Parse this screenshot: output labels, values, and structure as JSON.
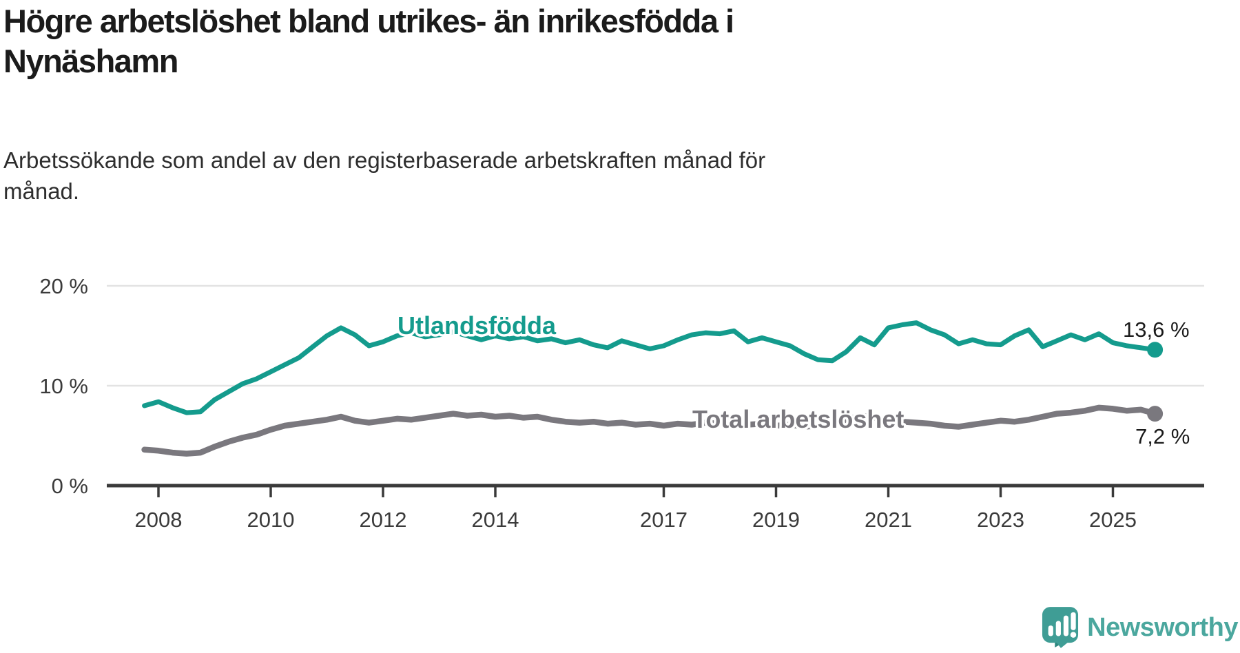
{
  "header": {
    "title": "Högre arbetslöshet bland utrikes- än inrikesfödda i\nNynäshamn",
    "subtitle": "Arbetssökande som andel av den registerbaserade arbetskraften månad för\nmånad."
  },
  "chart_data": {
    "type": "line",
    "unit": "%",
    "x_start": 2007.75,
    "x_step": 0.25,
    "xlim": [
      2007.1,
      2026.6
    ],
    "ylim": [
      0,
      21.7
    ],
    "grid": "horizontal",
    "x_ticks": [
      2008,
      2010,
      2012,
      2014,
      2017,
      2019,
      2021,
      2023,
      2025
    ],
    "y_ticks": [
      {
        "value": 0,
        "label": "0 %"
      },
      {
        "value": 10,
        "label": "10 %"
      },
      {
        "value": 20,
        "label": "20 %"
      }
    ],
    "series": [
      {
        "name": "Utlandsfödda",
        "color": "#149B8D",
        "end_label": "13,6 %",
        "end_value": 13.6,
        "values": [
          8.0,
          8.4,
          7.8,
          7.3,
          7.4,
          8.6,
          9.4,
          10.2,
          10.7,
          11.4,
          12.1,
          12.8,
          13.9,
          15.0,
          15.8,
          15.1,
          14.0,
          14.4,
          15.0,
          15.3,
          14.9,
          15.1,
          15.4,
          15.0,
          14.6,
          15.0,
          14.7,
          14.9,
          14.5,
          14.7,
          14.3,
          14.6,
          14.1,
          13.8,
          14.5,
          14.1,
          13.7,
          14.0,
          14.6,
          15.1,
          15.3,
          15.2,
          15.5,
          14.4,
          14.8,
          14.4,
          14.0,
          13.2,
          12.6,
          12.5,
          13.4,
          14.8,
          14.1,
          15.8,
          16.1,
          16.3,
          15.6,
          15.1,
          14.2,
          14.6,
          14.2,
          14.1,
          15.0,
          15.6,
          13.9,
          14.5,
          15.1,
          14.6,
          15.2,
          14.3,
          14.0,
          13.8,
          13.6
        ]
      },
      {
        "name": "Total arbetslöshet",
        "color": "#7A787E",
        "end_label": "7,2 %",
        "end_value": 7.2,
        "values": [
          3.6,
          3.5,
          3.3,
          3.2,
          3.3,
          3.9,
          4.4,
          4.8,
          5.1,
          5.6,
          6.0,
          6.2,
          6.4,
          6.6,
          6.9,
          6.5,
          6.3,
          6.5,
          6.7,
          6.6,
          6.8,
          7.0,
          7.2,
          7.0,
          7.1,
          6.9,
          7.0,
          6.8,
          6.9,
          6.6,
          6.4,
          6.3,
          6.4,
          6.2,
          6.3,
          6.1,
          6.2,
          6.0,
          6.2,
          6.1,
          6.3,
          6.2,
          6.4,
          6.1,
          6.2,
          6.0,
          6.1,
          5.9,
          6.0,
          6.1,
          6.6,
          7.0,
          6.8,
          6.6,
          6.4,
          6.3,
          6.2,
          6.0,
          5.9,
          6.1,
          6.3,
          6.5,
          6.4,
          6.6,
          6.9,
          7.2,
          7.3,
          7.5,
          7.8,
          7.7,
          7.5,
          7.6,
          7.2
        ]
      }
    ]
  },
  "footer": {
    "brand": "Newsworthy",
    "brand_color": "#4BA79E",
    "icon_color": "#3F9D95",
    "icon_fold_color": "#2E877F"
  }
}
